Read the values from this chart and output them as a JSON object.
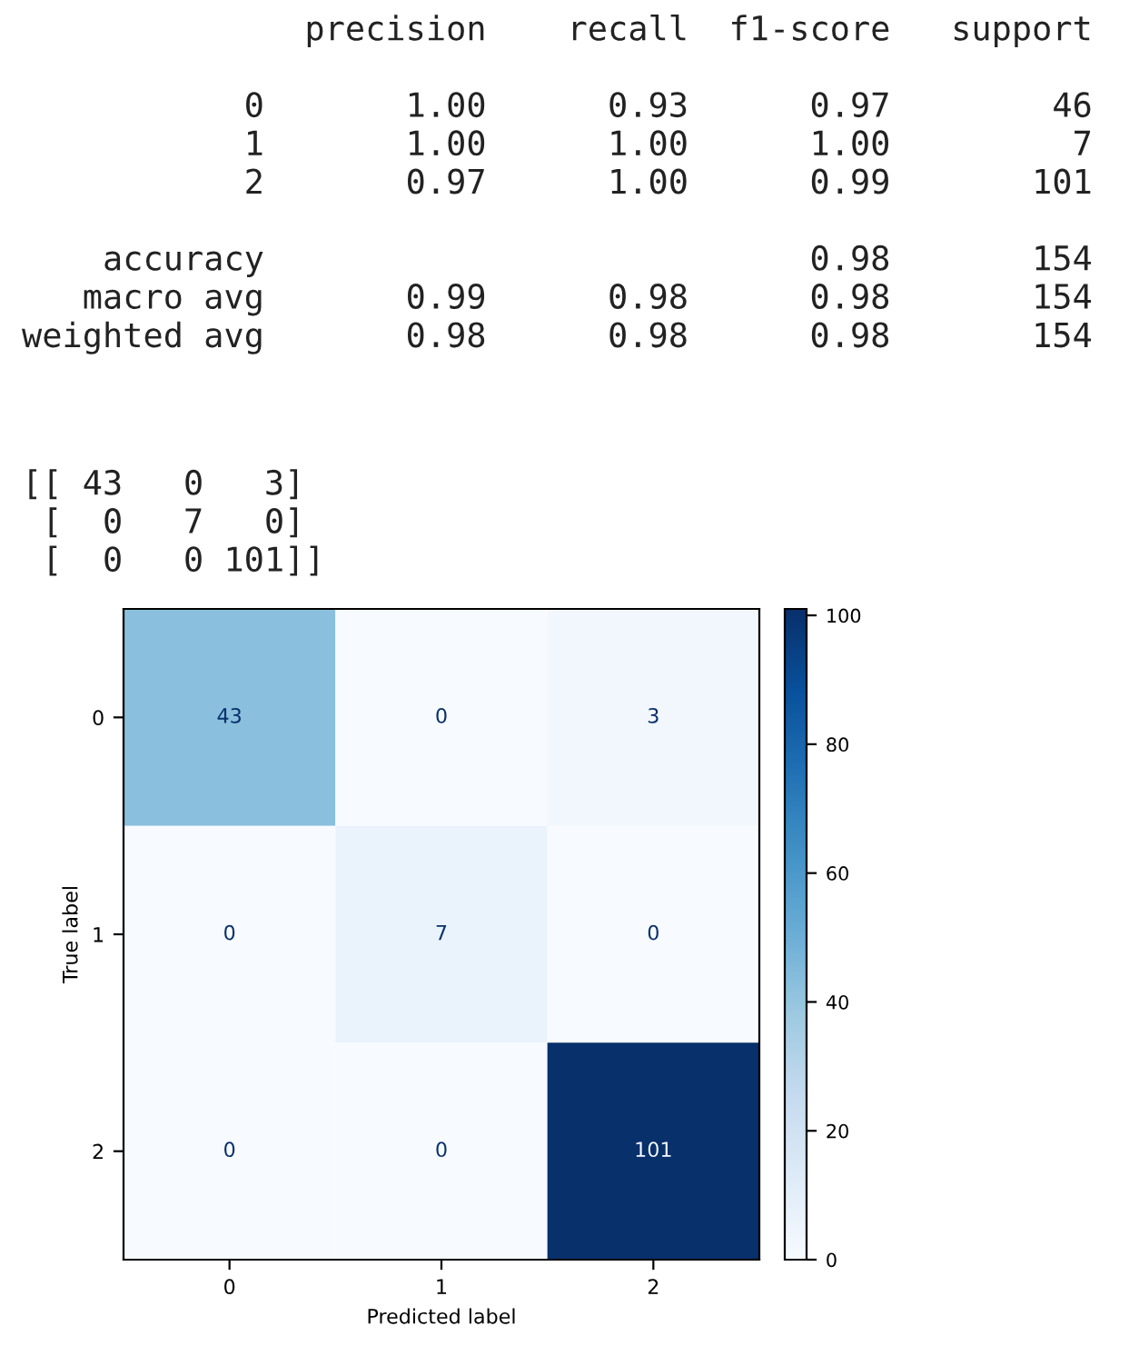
{
  "chart_data": {
    "type": "heatmap",
    "xlabel": "Predicted label",
    "ylabel": "True label",
    "categories": [
      "0",
      "1",
      "2"
    ],
    "y_categories": [
      "0",
      "1",
      "2"
    ],
    "cells": [
      [
        43,
        0,
        3
      ],
      [
        0,
        7,
        0
      ],
      [
        0,
        0,
        101
      ]
    ],
    "clim": [
      0,
      101
    ],
    "cticks": [
      0,
      20,
      40,
      60,
      80,
      100
    ],
    "data_labels": true,
    "annotations": [
      "              precision    recall  f1-score   support\n\n           0       1.00      0.93      0.97        46\n           1       1.00      1.00      1.00         7\n           2       0.97      1.00      0.99       101\n\n    accuracy                           0.98       154\n   macro avg       0.99      0.98      0.98       154\nweighted avg       0.98      0.98      0.98       154",
      "[[ 43   0   3]\n [  0   7   0]\n [  0   0 101]]"
    ]
  }
}
